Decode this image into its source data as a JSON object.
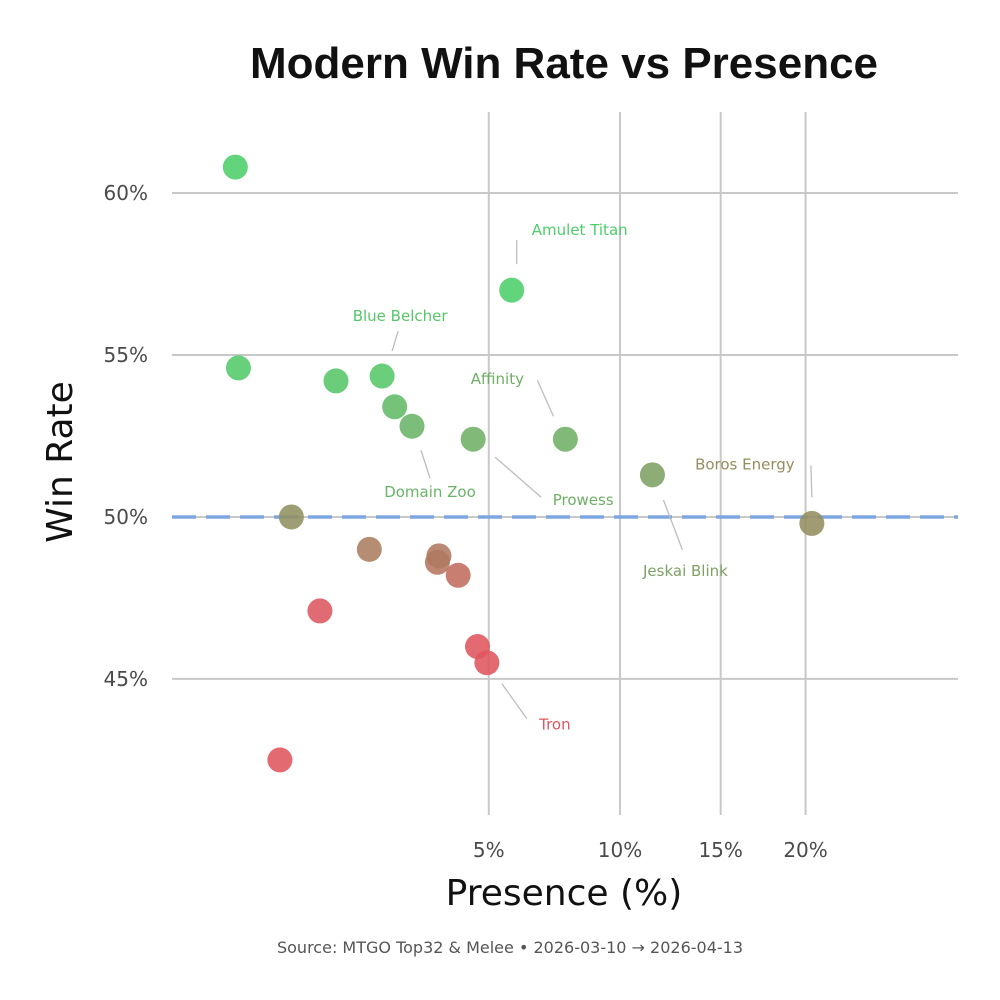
{
  "chart_data": {
    "type": "scatter",
    "title": "Modern Win Rate vs Presence",
    "xlabel": "Presence (%)",
    "ylabel": "Win Rate",
    "x_scale": "sqrt",
    "xlim": [
      0,
      22
    ],
    "ylim": [
      40.8,
      62.5
    ],
    "x_ticks": [
      {
        "value": 5,
        "label": "5%"
      },
      {
        "value": 10,
        "label": "10%"
      },
      {
        "value": 15,
        "label": "15%"
      },
      {
        "value": 20,
        "label": "20%"
      }
    ],
    "y_ticks": [
      {
        "value": 45,
        "label": "45%"
      },
      {
        "value": 50,
        "label": "50%"
      },
      {
        "value": 55,
        "label": "55%"
      },
      {
        "value": 60,
        "label": "60%"
      }
    ],
    "reference_line": {
      "y": 50,
      "color": "#7ea6e0",
      "style": "dashed"
    },
    "grid": true,
    "legend": "none",
    "color_scale": {
      "low": "#e0555f",
      "mid": "#8f9160",
      "high": "#4ccf6a"
    },
    "points": [
      {
        "x": 0.2,
        "y": 60.8,
        "label": ""
      },
      {
        "x": 0.22,
        "y": 54.6,
        "label": ""
      },
      {
        "x": 0.71,
        "y": 50.0,
        "label": ""
      },
      {
        "x": 0.58,
        "y": 42.5,
        "label": ""
      },
      {
        "x": 1.09,
        "y": 47.1,
        "label": ""
      },
      {
        "x": 1.34,
        "y": 54.2,
        "label": ""
      },
      {
        "x": 1.94,
        "y": 49.0,
        "label": ""
      },
      {
        "x": 2.2,
        "y": 54.35,
        "label": "Blue Belcher"
      },
      {
        "x": 2.47,
        "y": 53.4,
        "label": ""
      },
      {
        "x": 2.87,
        "y": 52.8,
        "label": "Domain Zoo"
      },
      {
        "x": 3.51,
        "y": 48.6,
        "label": ""
      },
      {
        "x": 3.55,
        "y": 48.8,
        "label": ""
      },
      {
        "x": 4.08,
        "y": 48.2,
        "label": ""
      },
      {
        "x": 4.52,
        "y": 52.4,
        "label": "Prowess"
      },
      {
        "x": 4.65,
        "y": 46.0,
        "label": ""
      },
      {
        "x": 4.94,
        "y": 45.5,
        "label": "Tron"
      },
      {
        "x": 5.75,
        "y": 57.0,
        "label": "Amulet Titan"
      },
      {
        "x": 7.71,
        "y": 52.4,
        "label": "Affinity"
      },
      {
        "x": 11.5,
        "y": 51.3,
        "label": "Jeskai Blink"
      },
      {
        "x": 20.4,
        "y": 49.8,
        "label": "Boros Energy"
      }
    ]
  },
  "footer": {
    "source": "Source: MTGO Top32 & Melee  •  2026-03-10 → 2026-04-13"
  }
}
